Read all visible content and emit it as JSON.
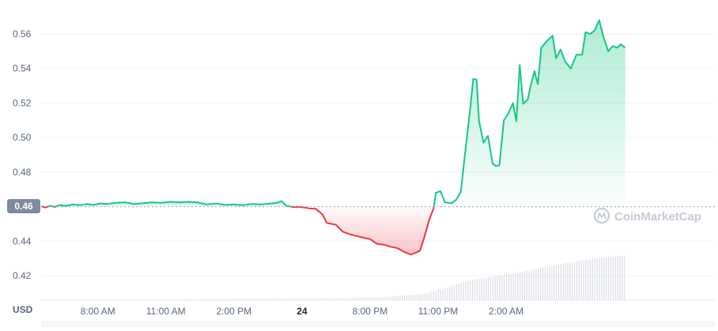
{
  "chart_data": {
    "type": "line",
    "currency_label": "USD",
    "reference_price": 0.46,
    "reference_price_label": "0.46",
    "watermark": "CoinMarketCap",
    "ylim": [
      0.41,
      0.57
    ],
    "yticks": [
      {
        "value": 0.42,
        "label": "0.42"
      },
      {
        "value": 0.44,
        "label": "0.44"
      },
      {
        "value": 0.48,
        "label": "0.48"
      },
      {
        "value": 0.5,
        "label": "0.50"
      },
      {
        "value": 0.52,
        "label": "0.52"
      },
      {
        "value": 0.54,
        "label": "0.54"
      },
      {
        "value": 0.56,
        "label": "0.56"
      }
    ],
    "x_range_hours": [
      5.5,
      35.2
    ],
    "xticks": [
      {
        "hour": 8,
        "label": "8:00 AM",
        "bold": false
      },
      {
        "hour": 11,
        "label": "11:00 AM",
        "bold": false
      },
      {
        "hour": 14,
        "label": "2:00 PM",
        "bold": false
      },
      {
        "hour": 17,
        "label": "24",
        "bold": true
      },
      {
        "hour": 20,
        "label": "8:00 PM",
        "bold": false
      },
      {
        "hour": 23,
        "label": "11:00 PM",
        "bold": false
      },
      {
        "hour": 26,
        "label": "2:00 AM",
        "bold": false
      }
    ],
    "colors": {
      "up": "#16c784",
      "down": "#ea3943",
      "grid": "#eff2f5",
      "axis_text": "#58667e",
      "badge": "#808a9d"
    },
    "price_series": [
      [
        5.5,
        0.4602
      ],
      [
        5.7,
        0.4595
      ],
      [
        5.9,
        0.4605
      ],
      [
        6.1,
        0.4598
      ],
      [
        6.3,
        0.4608
      ],
      [
        6.6,
        0.4605
      ],
      [
        6.9,
        0.4612
      ],
      [
        7.2,
        0.4608
      ],
      [
        7.5,
        0.4615
      ],
      [
        7.8,
        0.461
      ],
      [
        8.1,
        0.4618
      ],
      [
        8.4,
        0.4615
      ],
      [
        8.8,
        0.4622
      ],
      [
        9.2,
        0.4625
      ],
      [
        9.6,
        0.4615
      ],
      [
        10.0,
        0.462
      ],
      [
        10.4,
        0.4625
      ],
      [
        10.8,
        0.4622
      ],
      [
        11.2,
        0.4628
      ],
      [
        11.6,
        0.4625
      ],
      [
        12.0,
        0.4628
      ],
      [
        12.4,
        0.4625
      ],
      [
        12.8,
        0.4612
      ],
      [
        13.2,
        0.4618
      ],
      [
        13.6,
        0.461
      ],
      [
        14.0,
        0.4612
      ],
      [
        14.4,
        0.4608
      ],
      [
        14.8,
        0.4615
      ],
      [
        15.2,
        0.4612
      ],
      [
        15.6,
        0.4618
      ],
      [
        15.9,
        0.4622
      ],
      [
        16.1,
        0.4632
      ],
      [
        16.3,
        0.4605
      ],
      [
        16.6,
        0.4598
      ],
      [
        16.9,
        0.4598
      ],
      [
        17.1,
        0.4595
      ],
      [
        17.4,
        0.4588
      ],
      [
        17.6,
        0.4588
      ],
      [
        17.9,
        0.4555
      ],
      [
        18.1,
        0.4505
      ],
      [
        18.5,
        0.4495
      ],
      [
        18.8,
        0.4455
      ],
      [
        19.1,
        0.444
      ],
      [
        19.4,
        0.443
      ],
      [
        19.7,
        0.442
      ],
      [
        20.0,
        0.4412
      ],
      [
        20.3,
        0.4385
      ],
      [
        20.6,
        0.438
      ],
      [
        20.9,
        0.4368
      ],
      [
        21.2,
        0.436
      ],
      [
        21.5,
        0.4338
      ],
      [
        21.8,
        0.4322
      ],
      [
        22.0,
        0.4332
      ],
      [
        22.2,
        0.4345
      ],
      [
        22.4,
        0.4425
      ],
      [
        22.6,
        0.452
      ],
      [
        22.8,
        0.459
      ],
      [
        22.9,
        0.468
      ],
      [
        23.1,
        0.469
      ],
      [
        23.3,
        0.4625
      ],
      [
        23.6,
        0.462
      ],
      [
        23.8,
        0.464
      ],
      [
        24.0,
        0.4685
      ],
      [
        24.2,
        0.492
      ],
      [
        24.4,
        0.515
      ],
      [
        24.55,
        0.534
      ],
      [
        24.7,
        0.5335
      ],
      [
        24.8,
        0.51
      ],
      [
        25.0,
        0.497
      ],
      [
        25.2,
        0.501
      ],
      [
        25.4,
        0.485
      ],
      [
        25.55,
        0.4835
      ],
      [
        25.7,
        0.484
      ],
      [
        25.9,
        0.51
      ],
      [
        26.1,
        0.514
      ],
      [
        26.3,
        0.52
      ],
      [
        26.45,
        0.5095
      ],
      [
        26.6,
        0.542
      ],
      [
        26.75,
        0.5195
      ],
      [
        26.95,
        0.522
      ],
      [
        27.1,
        0.531
      ],
      [
        27.25,
        0.5385
      ],
      [
        27.4,
        0.531
      ],
      [
        27.55,
        0.552
      ],
      [
        27.8,
        0.556
      ],
      [
        28.05,
        0.559
      ],
      [
        28.2,
        0.546
      ],
      [
        28.4,
        0.551
      ],
      [
        28.6,
        0.544
      ],
      [
        28.85,
        0.54
      ],
      [
        29.1,
        0.548
      ],
      [
        29.35,
        0.548
      ],
      [
        29.5,
        0.561
      ],
      [
        29.7,
        0.56
      ],
      [
        29.9,
        0.562
      ],
      [
        30.1,
        0.568
      ],
      [
        30.3,
        0.558
      ],
      [
        30.5,
        0.55
      ],
      [
        30.7,
        0.553
      ],
      [
        30.9,
        0.552
      ],
      [
        31.05,
        0.554
      ],
      [
        31.25,
        0.552
      ]
    ],
    "volume_series": [
      [
        5.5,
        0.02
      ],
      [
        8,
        0.02
      ],
      [
        11,
        0.02
      ],
      [
        14,
        0.03
      ],
      [
        17,
        0.04
      ],
      [
        19,
        0.05
      ],
      [
        21,
        0.08
      ],
      [
        22.5,
        0.15
      ],
      [
        23.5,
        0.3
      ],
      [
        24.5,
        0.45
      ],
      [
        25.5,
        0.52
      ],
      [
        26.5,
        0.6
      ],
      [
        27.5,
        0.7
      ],
      [
        28.5,
        0.8
      ],
      [
        29.5,
        0.88
      ],
      [
        30.5,
        0.95
      ],
      [
        31.25,
        0.98
      ]
    ]
  }
}
